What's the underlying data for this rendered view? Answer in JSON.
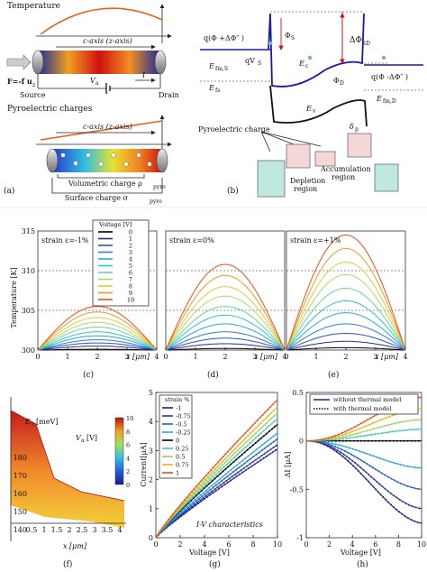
{
  "panel_labels": {
    "a": "(a)",
    "b": "(b)",
    "c": "(c)",
    "d": "(d)",
    "e": "(e)",
    "f": "(f)",
    "g": "(g)",
    "h": "(h)"
  },
  "panel_a": {
    "temperature_title": "Temperature",
    "c_axis_top": "c-axis (z-axis)",
    "force": "F=-f u",
    "force_sub": "z",
    "va": "V",
    "va_sub": "a",
    "current": "I",
    "source": "Source",
    "drain": "Drain",
    "pyro_title": "Pyroelectric charges",
    "c_axis_bottom": "c-axis (z-axis)",
    "volumetric": "Volumetric charge ρ",
    "volumetric_sub": "pyro",
    "surface": "Surface charge σ",
    "surface_sub": "pyro"
  },
  "panel_b": {
    "delta_phi_sd": "ΔΦ",
    "delta_phi_sd_sub": "SD",
    "phi_s": "Φ",
    "phi_s_sub": "S",
    "q_left": "q(Φ +ΔΦ″ )",
    "qvs": "qV",
    "qvs_sub": "S",
    "ec": "E",
    "ec_sub": "c",
    "efm_s": "E",
    "efm_s_sub": "fm,S",
    "efs": "E",
    "efs_sub": "fs",
    "phi_d": "Φ",
    "phi_d_sub": "D",
    "q_right": "q(Φ -ΔΦ″ )",
    "efm_d": "E",
    "efm_d_sub": "fm,D",
    "ev": "E",
    "ev_sub": "v",
    "pyro_charge": "Pyroelectric charge",
    "delta_p": "δ",
    "delta_p_sub": "p",
    "depletion": "Depletion",
    "depletion2": "region",
    "accumulation": "Accumulation",
    "accumulation2": "region"
  },
  "panels_cde": {
    "ylabel": "Temperature [K]",
    "xlabel": "z [μm]",
    "legend_title": "Voltage [V]",
    "legend_items": [
      "0",
      "1",
      "2",
      "3",
      "4",
      "5",
      "6",
      "7",
      "8",
      "9",
      "10"
    ],
    "series_colors": [
      "#000000",
      "#2b2f8a",
      "#3050c8",
      "#2e7fd8",
      "#2aa8d8",
      "#35c4c0",
      "#6cd49a",
      "#a8dc6a",
      "#e0cc3c",
      "#f09a28",
      "#e8501e"
    ],
    "ylim": [
      300,
      315
    ],
    "xlim": [
      0,
      4
    ],
    "yticks": [
      "300",
      "305",
      "310",
      "315"
    ],
    "xticks": [
      "0",
      "1",
      "2",
      "3",
      "4"
    ],
    "ref_lines": [
      305,
      310
    ],
    "charts": [
      {
        "label": "strain ε=-1%",
        "peaks": [
          300.1,
          300.5,
          300.9,
          301.3,
          301.8,
          302.3,
          302.9,
          303.5,
          304.1,
          304.8,
          305.5
        ]
      },
      {
        "label": "strain ε=0%",
        "peaks": [
          300.2,
          300.8,
          301.5,
          302.3,
          303.3,
          304.4,
          305.5,
          306.8,
          308.0,
          309.4,
          310.8
        ]
      },
      {
        "label": "strain ε=+1%",
        "peaks": [
          300.3,
          301.1,
          302.1,
          303.3,
          304.7,
          306.2,
          307.8,
          309.5,
          311.1,
          312.8,
          314.5
        ]
      }
    ]
  },
  "panel_f": {
    "zlabel": "E",
    "zlabel_sub": "c",
    "zlabel_unit": "[meV]",
    "colorbar_label": "V",
    "colorbar_sub": "a",
    "colorbar_unit": "[V]",
    "colorbar_ticks": [
      "0",
      "2",
      "4",
      "6",
      "8",
      "10"
    ],
    "zticks": [
      "140",
      "150",
      "160",
      "170",
      "180"
    ],
    "xticks": [
      "0.5",
      "1",
      "1.5",
      "2",
      "2.5",
      "3",
      "3.5",
      "4"
    ],
    "xlabel": "x [μm]"
  },
  "chart_data": [
    {
      "type": "line",
      "title": "I-V characteristics",
      "xlabel": "Voltage [V]",
      "ylabel": "Current[μA]",
      "xlim": [
        0,
        10
      ],
      "ylim": [
        0,
        5
      ],
      "xticks": [
        "0",
        "2",
        "4",
        "6",
        "8",
        "10"
      ],
      "yticks": [
        "0",
        "1",
        "2",
        "3",
        "4",
        "5"
      ],
      "legend_title": "strain %",
      "x": [
        0,
        1,
        2,
        3,
        4,
        5,
        6,
        7,
        8,
        9,
        10
      ],
      "series": [
        {
          "name": "-1",
          "color": "#1a237e",
          "end": 3.05
        },
        {
          "name": "-0.75",
          "color": "#283593",
          "end": 3.2
        },
        {
          "name": "-0.5",
          "color": "#1e5fc8",
          "end": 3.4
        },
        {
          "name": "-0.25",
          "color": "#2aa6d8",
          "end": 3.6
        },
        {
          "name": "0",
          "color": "#000000",
          "end": 3.9
        },
        {
          "name": "0.25",
          "color": "#45c9a9",
          "end": 4.1
        },
        {
          "name": "0.5",
          "color": "#98d35c",
          "end": 4.3
        },
        {
          "name": "0.75",
          "color": "#f0b020",
          "end": 4.5
        },
        {
          "name": "1",
          "color": "#e8501e",
          "end": 4.75
        }
      ]
    },
    {
      "type": "line",
      "xlabel": "Voltage [V]",
      "ylabel": "ΔI [μA]",
      "xlim": [
        0,
        10
      ],
      "ylim": [
        -1,
        0.5
      ],
      "xticks": [
        "0",
        "2",
        "4",
        "6",
        "8",
        "10"
      ],
      "yticks": [
        "-1",
        "-0.5",
        "0",
        "0.5"
      ],
      "legend": [
        "without thermal model",
        "with thermal model"
      ],
      "x": [
        0,
        1,
        2,
        3,
        4,
        5,
        6,
        7,
        8,
        9,
        10
      ],
      "series": [
        {
          "name": "-1",
          "color": "#1a237e",
          "end": -0.85
        },
        {
          "name": "-0.75",
          "color": "#283593",
          "end": -0.7
        },
        {
          "name": "-0.5",
          "color": "#1e5fc8",
          "end": -0.5
        },
        {
          "name": "-0.25",
          "color": "#2aa6d8",
          "end": -0.28
        },
        {
          "name": "0",
          "color": "#000000",
          "end": 0
        },
        {
          "name": "0.25",
          "color": "#45c9a9",
          "end": 0.12
        },
        {
          "name": "0.5",
          "color": "#98d35c",
          "end": 0.22
        },
        {
          "name": "0.75",
          "color": "#f0b020",
          "end": 0.33
        },
        {
          "name": "1",
          "color": "#e8501e",
          "end": 0.45
        }
      ]
    }
  ]
}
